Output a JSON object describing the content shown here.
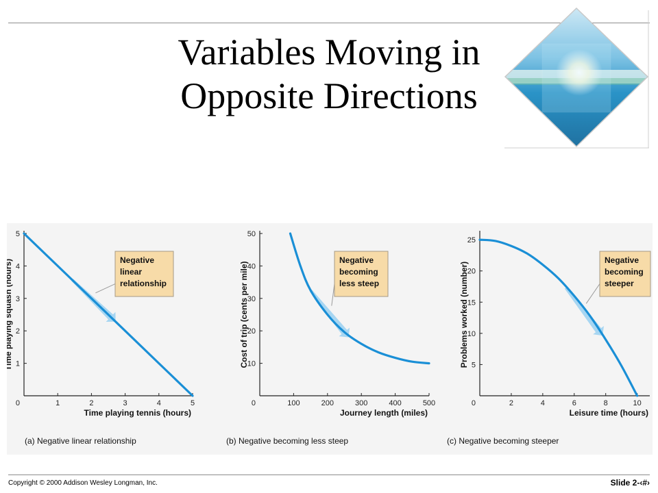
{
  "slide": {
    "title_line1": "Variables Moving in",
    "title_line2": "Opposite Directions",
    "copyright": "Copyright © 2000 Addison Wesley Longman, Inc.",
    "slide_number": "Slide 2-‹#›"
  },
  "colors": {
    "curve": "#1a8fd6",
    "arrow": "#9fd3f2",
    "callout_fill": "#f7dba8",
    "callout_stroke": "#a59a86"
  },
  "chart_data": [
    {
      "type": "line",
      "caption": "(a) Negative linear relationship",
      "xlabel": "Time playing tennis (hours)",
      "ylabel": "Time playing squash (hours)",
      "xlim": [
        0,
        5
      ],
      "ylim": [
        0,
        5
      ],
      "xticks": [
        1,
        2,
        3,
        4,
        5
      ],
      "yticks": [
        1,
        2,
        3,
        4,
        5
      ],
      "origin_label": "0",
      "annotation": [
        "Negative",
        "linear",
        "relationship"
      ],
      "x": [
        0,
        1,
        2,
        3,
        4,
        5
      ],
      "y": [
        5,
        4,
        3,
        2,
        1,
        0
      ]
    },
    {
      "type": "line",
      "caption": "(b) Negative becoming less steep",
      "xlabel": "Journey length (miles)",
      "ylabel": "Cost of trip (cents per mile)",
      "xlim": [
        0,
        500
      ],
      "ylim": [
        0,
        50
      ],
      "xticks": [
        100,
        200,
        300,
        400,
        500
      ],
      "yticks": [
        10,
        20,
        30,
        40,
        50
      ],
      "origin_label": "0",
      "annotation": [
        "Negative",
        "becoming",
        "less steep"
      ],
      "x": [
        90,
        120,
        150,
        200,
        250,
        300,
        350,
        400,
        450,
        500
      ],
      "y": [
        50,
        40,
        32.5,
        25,
        19.6,
        16,
        13.4,
        11.7,
        10.5,
        10
      ]
    },
    {
      "type": "line",
      "caption": "(c) Negative becoming steeper",
      "xlabel": "Leisure time (hours)",
      "ylabel": "Problems worked (number)",
      "xlim": [
        0,
        10.8
      ],
      "ylim": [
        0,
        26
      ],
      "xticks": [
        2,
        4,
        6,
        8,
        10
      ],
      "yticks": [
        5,
        10,
        15,
        20,
        25
      ],
      "origin_label": "0",
      "annotation": [
        "Negative",
        "becoming",
        "steeper"
      ],
      "x": [
        0,
        1,
        2,
        3,
        4,
        5,
        6,
        7,
        8,
        9,
        10
      ],
      "y": [
        25,
        24.8,
        24,
        22.8,
        21,
        18.8,
        16,
        12.8,
        9,
        4.8,
        0
      ]
    }
  ]
}
